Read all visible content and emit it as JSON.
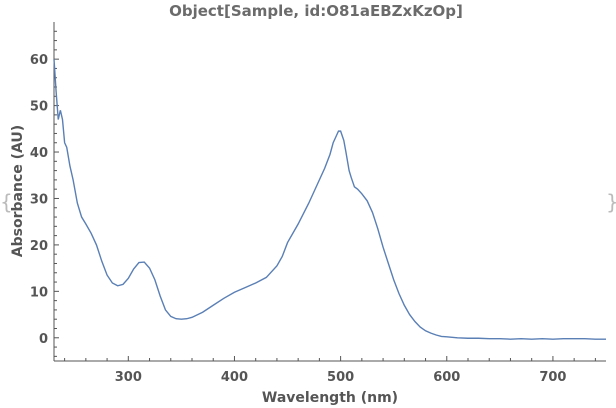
{
  "chart_data": {
    "type": "line",
    "title": "Object[Sample, id:O81aEBZxKzOp]",
    "xlabel": "Wavelength  (nm)",
    "ylabel": "Absorbance  (AU)",
    "xlim": [
      230,
      750
    ],
    "ylim": [
      -5,
      68
    ],
    "xticks": [
      300,
      400,
      500,
      600,
      700
    ],
    "yticks": [
      0,
      10,
      20,
      30,
      40,
      50,
      60
    ],
    "grid": false,
    "legend": "none",
    "line_color": "#5a7fb5",
    "axis_color": "#555555",
    "series": [
      {
        "x": [
          230,
          232,
          234,
          236,
          238,
          240,
          242,
          245,
          248,
          252,
          256,
          260,
          265,
          270,
          275,
          280,
          285,
          290,
          295,
          300,
          305,
          310,
          315,
          320,
          325,
          330,
          335,
          340,
          345,
          350,
          355,
          360,
          370,
          380,
          390,
          400,
          410,
          420,
          430,
          440,
          445,
          450,
          460,
          470,
          480,
          485,
          490,
          493,
          496,
          498,
          500,
          503,
          505,
          508,
          510,
          513,
          516,
          520,
          525,
          530,
          535,
          540,
          545,
          550,
          555,
          560,
          565,
          570,
          575,
          580,
          585,
          590,
          595,
          600,
          610,
          620,
          630,
          640,
          650,
          660,
          670,
          680,
          690,
          700,
          710,
          720,
          730,
          740,
          750
        ],
        "y": [
          60,
          53,
          47,
          49,
          47,
          42,
          41,
          37,
          34,
          29,
          26,
          24.5,
          22.5,
          20,
          16.5,
          13.5,
          11.8,
          11.2,
          11.5,
          12.8,
          14.8,
          16.2,
          16.3,
          15,
          12.5,
          9,
          6,
          4.6,
          4.1,
          4,
          4.1,
          4.4,
          5.5,
          7,
          8.5,
          9.8,
          10.8,
          11.8,
          13,
          15.5,
          17.5,
          20.5,
          24.5,
          29,
          34,
          36.5,
          39.5,
          42,
          43.5,
          44.5,
          44.5,
          42.5,
          40,
          36,
          34.5,
          32.5,
          32,
          31,
          29.5,
          27,
          23.5,
          19.5,
          16,
          12.5,
          9.5,
          7,
          5,
          3.5,
          2.3,
          1.5,
          1,
          0.6,
          0.3,
          0.2,
          0,
          -0.1,
          -0.1,
          -0.2,
          -0.2,
          -0.3,
          -0.2,
          -0.3,
          -0.2,
          -0.3,
          -0.2,
          -0.2,
          -0.2,
          -0.3,
          -0.3
        ]
      }
    ]
  }
}
